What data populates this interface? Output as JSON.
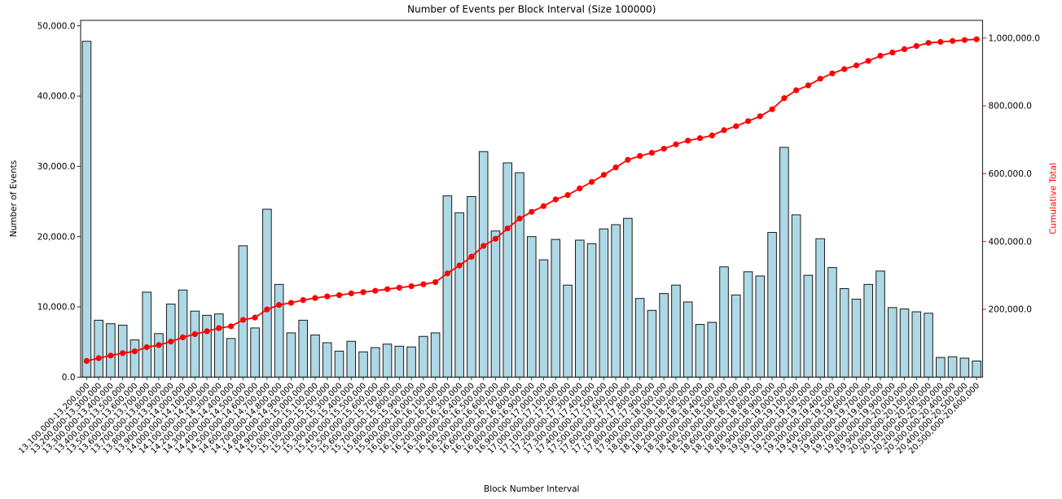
{
  "chart_data": {
    "type": "bar",
    "title": "Number of Events per Block Interval (Size 100000)",
    "xlabel": "Block Number Interval",
    "ylabel_left": "Number of Events",
    "ylabel_right": "Cumulative Total",
    "grid": false,
    "legend": false,
    "x_tick_rotation": 45,
    "categories": [
      "13,100,000-13,200,000",
      "13,200,000-13,300,000",
      "13,300,000-13,400,000",
      "13,400,000-13,500,000",
      "13,500,000-13,600,000",
      "13,600,000-13,700,000",
      "13,700,000-13,800,000",
      "13,800,000-13,900,000",
      "13,900,000-14,000,000",
      "14,000,000-14,100,000",
      "14,100,000-14,200,000",
      "14,200,000-14,300,000",
      "14,300,000-14,400,000",
      "14,400,000-14,500,000",
      "14,500,000-14,600,000",
      "14,600,000-14,700,000",
      "14,700,000-14,800,000",
      "14,800,000-14,900,000",
      "14,900,000-15,000,000",
      "15,000,000-15,100,000",
      "15,100,000-15,200,000",
      "15,200,000-15,300,000",
      "15,300,000-15,400,000",
      "15,400,000-15,500,000",
      "15,500,000-15,600,000",
      "15,600,000-15,700,000",
      "15,700,000-15,800,000",
      "15,800,000-15,900,000",
      "15,900,000-16,000,000",
      "16,000,000-16,100,000",
      "16,100,000-16,200,000",
      "16,200,000-16,300,000",
      "16,300,000-16,400,000",
      "16,400,000-16,500,000",
      "16,500,000-16,600,000",
      "16,600,000-16,700,000",
      "16,700,000-16,800,000",
      "16,800,000-16,900,000",
      "16,900,000-17,000,000",
      "17,000,000-17,100,000",
      "17,100,000-17,200,000",
      "17,200,000-17,300,000",
      "17,300,000-17,400,000",
      "17,400,000-17,500,000",
      "17,500,000-17,600,000",
      "17,600,000-17,700,000",
      "17,700,000-17,800,000",
      "17,800,000-17,900,000",
      "17,900,000-18,000,000",
      "18,000,000-18,100,000",
      "18,100,000-18,200,000",
      "18,200,000-18,300,000",
      "18,300,000-18,400,000",
      "18,400,000-18,500,000",
      "18,500,000-18,600,000",
      "18,600,000-18,700,000",
      "18,700,000-18,800,000",
      "18,800,000-18,900,000",
      "18,900,000-19,000,000",
      "19,000,000-19,100,000",
      "19,100,000-19,200,000",
      "19,200,000-19,300,000",
      "19,300,000-19,400,000",
      "19,400,000-19,500,000",
      "19,500,000-19,600,000",
      "19,600,000-19,700,000",
      "19,700,000-19,800,000",
      "19,800,000-19,900,000",
      "19,900,000-20,000,000",
      "20,000,000-20,100,000",
      "20,100,000-20,200,000",
      "20,200,000-20,300,000",
      "20,300,000-20,400,000",
      "20,400,000-20,500,000",
      "20,500,000-20,600,000"
    ],
    "series": [
      {
        "name": "Number of Events",
        "type": "bar",
        "axis": "left",
        "color": "#ADD8E6",
        "edge_color": "#1a1a1a",
        "values": [
          47800,
          8100,
          7600,
          7400,
          5300,
          12100,
          6200,
          10400,
          12400,
          9400,
          8800,
          9000,
          5500,
          18700,
          7000,
          23900,
          13200,
          6300,
          8100,
          6000,
          4900,
          3700,
          5100,
          3600,
          4200,
          4700,
          4400,
          4300,
          5800,
          6300,
          25800,
          23400,
          25700,
          32100,
          20800,
          30500,
          29100,
          20000,
          16700,
          19600,
          13100,
          19500,
          19000,
          21100,
          21700,
          22600,
          11200,
          9500,
          11900,
          13100,
          10700,
          7500,
          7800,
          15700,
          11700,
          15000,
          14400,
          20600,
          32700,
          23100,
          14500,
          19700,
          15600,
          12600,
          11100,
          13200,
          15100,
          9900,
          9700,
          9300,
          9100,
          2800,
          2900,
          2700,
          2300
        ]
      },
      {
        "name": "Cumulative Total",
        "type": "line",
        "axis": "right",
        "color": "#FF0000",
        "marker": "circle",
        "values": [
          47800,
          55900,
          63500,
          70900,
          76200,
          88300,
          94500,
          104900,
          117300,
          126700,
          135500,
          144500,
          150000,
          168700,
          175700,
          199600,
          212800,
          219100,
          227200,
          233200,
          238100,
          241800,
          246900,
          250500,
          254700,
          259400,
          263800,
          268100,
          273900,
          280200,
          306000,
          329400,
          355100,
          387200,
          408000,
          438500,
          467600,
          487600,
          504300,
          523900,
          537000,
          556500,
          575500,
          596600,
          618300,
          640900,
          652100,
          661600,
          673500,
          686600,
          697300,
          704800,
          712600,
          728300,
          740000,
          755000,
          769400,
          790000,
          822700,
          845800,
          860300,
          880000,
          895600,
          908200,
          919300,
          932500,
          947600,
          957500,
          967200,
          976500,
          985600,
          988400,
          991300,
          994000,
          996300
        ]
      }
    ],
    "left_axis": {
      "range": [
        0,
        50780
      ],
      "ticks": [
        0,
        10000,
        20000,
        30000,
        40000,
        50000
      ],
      "tick_labels": [
        "0.0",
        "10,000.0",
        "20,000.0",
        "30,000.0",
        "40,000.0",
        "50,000.0"
      ],
      "color": "#000000"
    },
    "right_axis": {
      "range": [
        0,
        1052100
      ],
      "ticks": [
        200000,
        400000,
        600000,
        800000,
        1000000
      ],
      "tick_labels": [
        "200,000.0",
        "400,000.0",
        "600,000.0",
        "800,000.0",
        "1,000,000.0"
      ],
      "color": "#FF0000"
    }
  }
}
